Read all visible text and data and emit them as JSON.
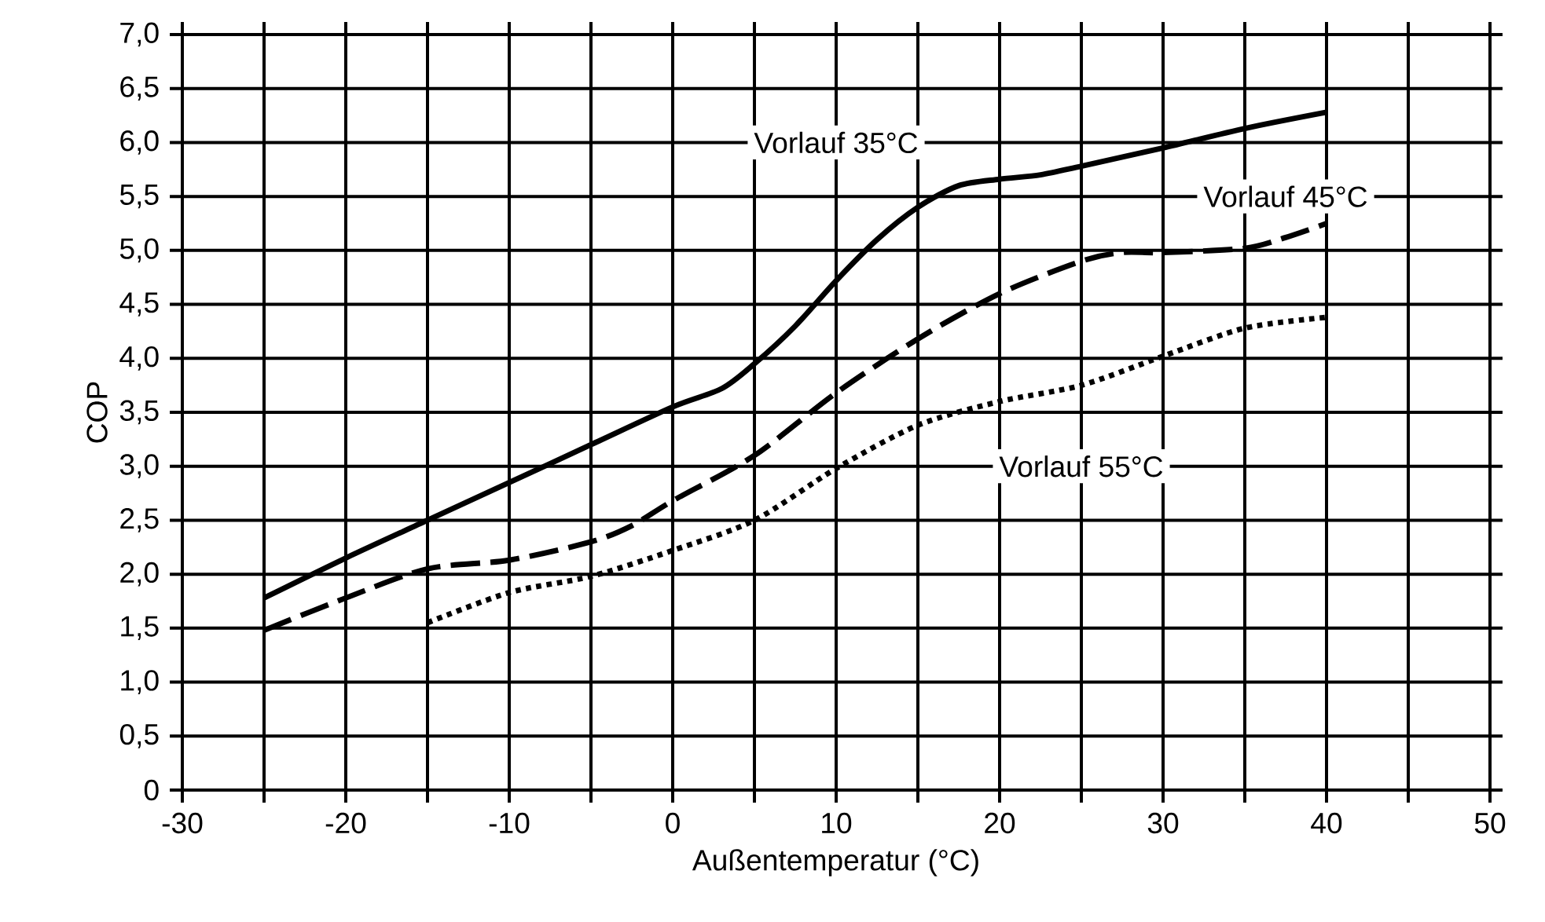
{
  "chart_data": {
    "type": "line",
    "xlabel": "Außentemperatur  (°C)",
    "ylabel": "COP",
    "xlim": [
      -30,
      50
    ],
    "ylim": [
      0,
      7
    ],
    "xticks": [
      -30,
      -20,
      -10,
      0,
      10,
      20,
      30,
      40,
      50
    ],
    "yticks": [
      0,
      {
        "value": 0.5,
        "label": "0,5"
      },
      {
        "value": 1,
        "label": "1,0"
      },
      {
        "value": 1.5,
        "label": "1,5"
      },
      {
        "value": 2,
        "label": "2,0"
      },
      {
        "value": 2.5,
        "label": "2,5"
      },
      {
        "value": 3,
        "label": "3,0"
      },
      {
        "value": 3.5,
        "label": "3,5"
      },
      {
        "value": 4,
        "label": "4,0"
      },
      {
        "value": 4.5,
        "label": "4,5"
      },
      {
        "value": 5,
        "label": "5,0"
      },
      {
        "value": 5.5,
        "label": "5,5"
      },
      {
        "value": 6,
        "label": "6,0"
      },
      {
        "value": 6.5,
        "label": "6,5"
      },
      {
        "value": 7,
        "label": "7,0"
      }
    ],
    "grid": true,
    "series": [
      {
        "name": "Vorlauf 35°C",
        "color": "#000000",
        "line_style": "solid",
        "x": [
          -25,
          -20,
          -15,
          -10,
          -5,
          0,
          3,
          5,
          7.5,
          10,
          12.5,
          15,
          17.5,
          20,
          22.5,
          25,
          30,
          35,
          40
        ],
        "values": [
          1.78,
          2.15,
          2.5,
          2.85,
          3.2,
          3.55,
          3.72,
          3.95,
          4.3,
          4.72,
          5.1,
          5.4,
          5.6,
          5.66,
          5.7,
          5.78,
          5.95,
          6.13,
          6.28
        ]
      },
      {
        "name": "Vorlauf 45°C",
        "color": "#000000",
        "line_style": "dashed",
        "x": [
          -25,
          -20,
          -15,
          -10,
          -5,
          -2.5,
          0,
          5,
          10,
          15,
          20,
          25,
          27.5,
          30,
          35,
          37.5,
          40
        ],
        "values": [
          1.48,
          1.78,
          2.05,
          2.13,
          2.3,
          2.45,
          2.68,
          3.1,
          3.68,
          4.18,
          4.6,
          4.9,
          4.98,
          4.98,
          5.02,
          5.12,
          5.25
        ]
      },
      {
        "name": "Vorlauf 55°C",
        "color": "#000000",
        "line_style": "dotted",
        "x": [
          -15,
          -10,
          -5,
          0,
          5,
          10,
          15,
          20,
          25,
          30,
          35,
          40
        ],
        "values": [
          1.55,
          1.83,
          1.98,
          2.22,
          2.5,
          2.98,
          3.38,
          3.6,
          3.75,
          4.02,
          4.28,
          4.38
        ]
      }
    ]
  }
}
